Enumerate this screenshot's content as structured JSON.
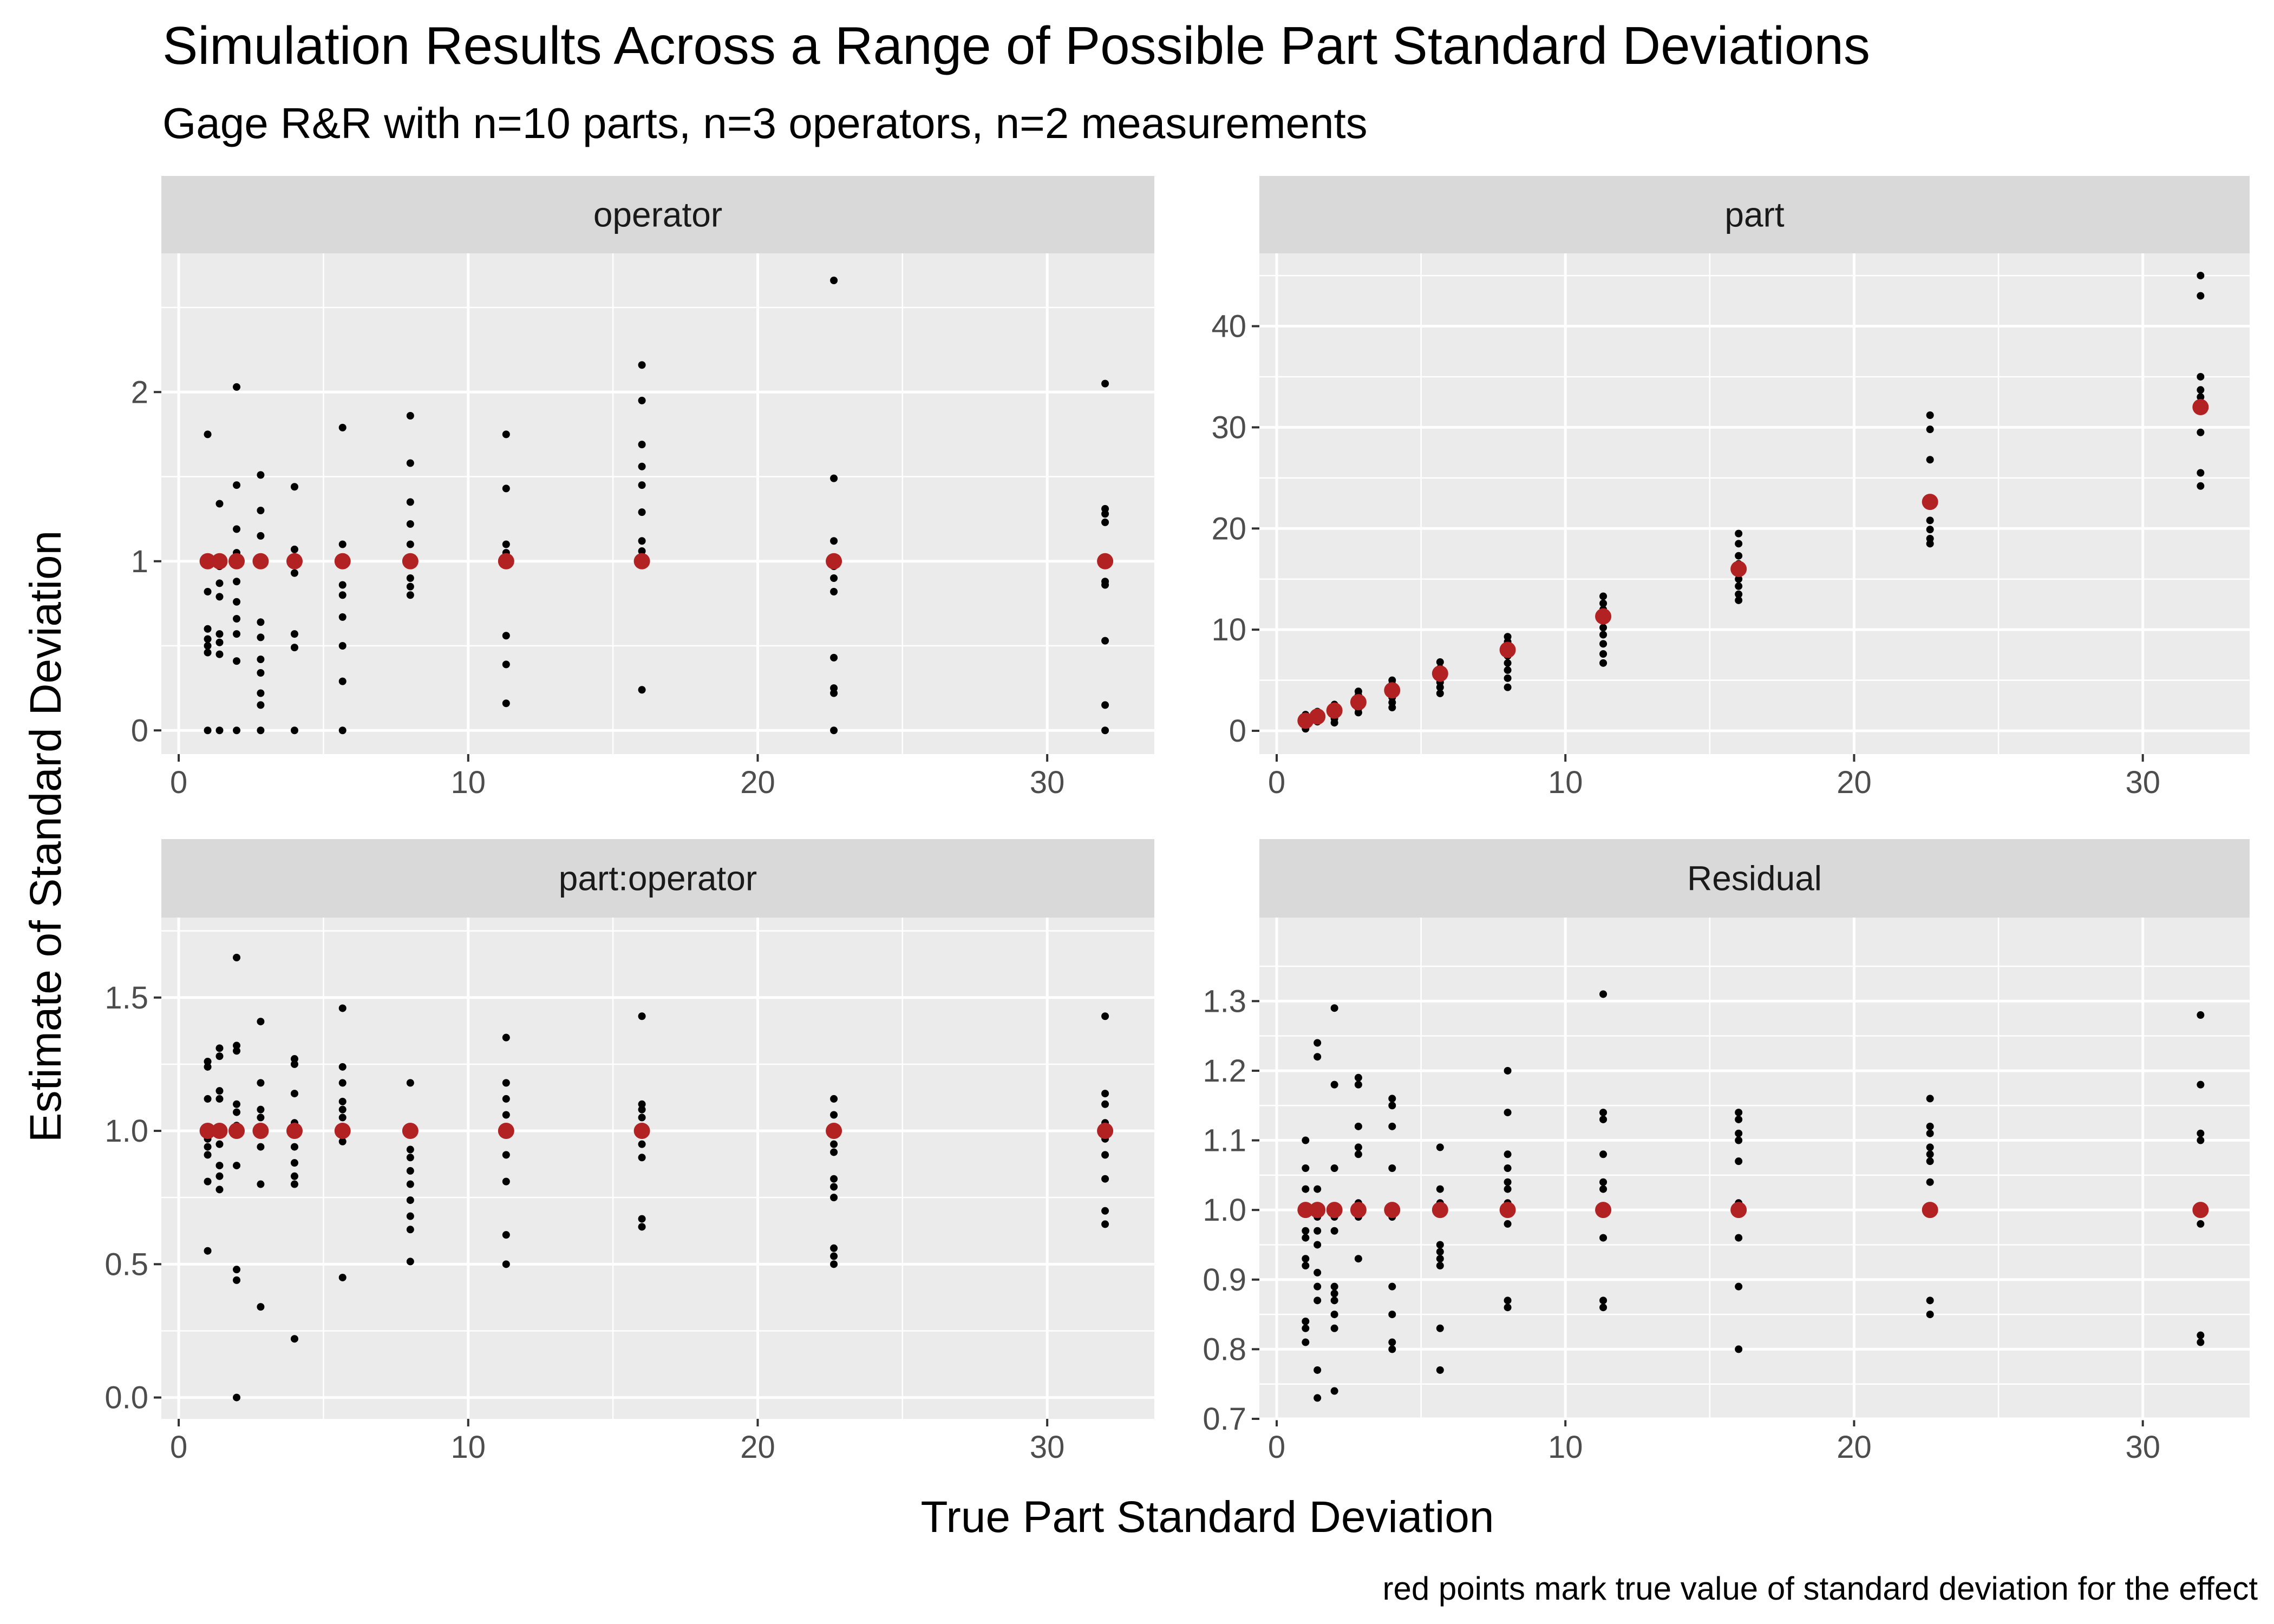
{
  "chart_data": {
    "type": "scatter",
    "title": "Simulation Results Across a Range of Possible Part Standard Deviations",
    "subtitle": "Gage R&R with n=10 parts, n=3 operators, n=2 measurements",
    "xlabel": "True Part Standard Deviation",
    "ylabel": "Estimate of Standard Deviation",
    "caption": "red points mark true value of standard deviation for the effect",
    "grid": true,
    "colors": {
      "estimate_point": "#000000",
      "true_value_point": "#b22222",
      "panel_background": "#ebebeb",
      "strip_background": "#d9d9d9",
      "gridline": "#ffffff"
    },
    "panels": [
      {
        "strip": "operator",
        "xlim": [
          -0.6,
          33.7
        ],
        "ylim": [
          -0.14,
          2.82
        ],
        "x_ticks": [
          0,
          10,
          20,
          30
        ],
        "x_tick_labels": [
          "0",
          "10",
          "20",
          "30"
        ],
        "y_ticks": [
          0,
          1,
          2
        ],
        "y_tick_labels": [
          "0",
          "1",
          "2"
        ],
        "true_points": [
          {
            "x": 1,
            "y": 1
          },
          {
            "x": 1.41,
            "y": 1
          },
          {
            "x": 2,
            "y": 1
          },
          {
            "x": 2.83,
            "y": 1
          },
          {
            "x": 4,
            "y": 1
          },
          {
            "x": 5.66,
            "y": 1
          },
          {
            "x": 8,
            "y": 1
          },
          {
            "x": 11.31,
            "y": 1
          },
          {
            "x": 16,
            "y": 1
          },
          {
            "x": 22.63,
            "y": 1
          },
          {
            "x": 32,
            "y": 1
          }
        ],
        "estimates": [
          {
            "x": 1,
            "y": [
              1.75,
              1.0,
              0.82,
              0.6,
              0.54,
              0.5,
              0.46,
              0.0
            ]
          },
          {
            "x": 1.41,
            "y": [
              1.34,
              0.97,
              0.87,
              0.79,
              0.57,
              0.52,
              0.45,
              0.0
            ]
          },
          {
            "x": 2,
            "y": [
              2.03,
              1.45,
              1.19,
              1.05,
              0.88,
              0.76,
              0.66,
              0.57,
              0.41,
              0.0
            ]
          },
          {
            "x": 2.83,
            "y": [
              1.51,
              1.3,
              1.15,
              0.64,
              0.55,
              0.42,
              0.34,
              0.22,
              0.15,
              0.0
            ]
          },
          {
            "x": 4,
            "y": [
              1.44,
              1.07,
              0.98,
              0.93,
              0.57,
              0.49,
              0.0
            ]
          },
          {
            "x": 5.66,
            "y": [
              1.79,
              1.1,
              0.86,
              0.8,
              0.67,
              0.5,
              0.29,
              0.0
            ]
          },
          {
            "x": 8,
            "y": [
              1.86,
              1.58,
              1.35,
              1.22,
              1.1,
              0.9,
              0.85,
              0.8
            ]
          },
          {
            "x": 11.31,
            "y": [
              1.75,
              1.43,
              1.1,
              1.05,
              0.56,
              0.39,
              0.16
            ]
          },
          {
            "x": 16,
            "y": [
              2.16,
              1.95,
              1.69,
              1.56,
              1.45,
              1.29,
              1.12,
              1.06,
              0.24
            ]
          },
          {
            "x": 22.63,
            "y": [
              2.66,
              1.49,
              1.12,
              0.97,
              0.9,
              0.82,
              0.43,
              0.25,
              0.22,
              0.0
            ]
          },
          {
            "x": 32,
            "y": [
              2.05,
              1.31,
              1.28,
              1.23,
              0.88,
              0.86,
              0.53,
              0.15,
              0.0
            ]
          }
        ]
      },
      {
        "strip": "part",
        "xlim": [
          -0.6,
          33.7
        ],
        "ylim": [
          -2.3,
          47.2
        ],
        "x_ticks": [
          0,
          10,
          20,
          30
        ],
        "x_tick_labels": [
          "0",
          "10",
          "20",
          "30"
        ],
        "y_ticks": [
          0,
          10,
          20,
          30,
          40
        ],
        "y_tick_labels": [
          "0",
          "10",
          "20",
          "30",
          "40"
        ],
        "true_points": [
          {
            "x": 1,
            "y": 1
          },
          {
            "x": 1.41,
            "y": 1.41
          },
          {
            "x": 2,
            "y": 2
          },
          {
            "x": 2.83,
            "y": 2.83
          },
          {
            "x": 4,
            "y": 4
          },
          {
            "x": 5.66,
            "y": 5.66
          },
          {
            "x": 8,
            "y": 8
          },
          {
            "x": 11.31,
            "y": 11.31
          },
          {
            "x": 16,
            "y": 16
          },
          {
            "x": 22.63,
            "y": 22.63
          },
          {
            "x": 32,
            "y": 32
          }
        ],
        "estimates": [
          {
            "x": 1,
            "y": [
              1.6,
              1.3,
              1.1,
              0.9,
              0.7,
              0.5,
              0.2
            ]
          },
          {
            "x": 1.41,
            "y": [
              1.9,
              1.6,
              1.4,
              1.2,
              1.0,
              0.9
            ]
          },
          {
            "x": 2,
            "y": [
              2.6,
              2.3,
              2.1,
              1.8,
              1.5,
              1.2,
              0.8
            ]
          },
          {
            "x": 2.83,
            "y": [
              3.9,
              3.5,
              3.1,
              2.6,
              2.2,
              1.8
            ]
          },
          {
            "x": 4,
            "y": [
              5.0,
              4.6,
              4.2,
              3.8,
              3.3,
              2.8,
              2.3
            ]
          },
          {
            "x": 5.66,
            "y": [
              6.8,
              6.2,
              5.8,
              5.3,
              4.8,
              4.3,
              3.7
            ]
          },
          {
            "x": 8,
            "y": [
              9.3,
              8.8,
              8.2,
              7.4,
              6.7,
              6.0,
              5.2,
              4.3
            ]
          },
          {
            "x": 11.31,
            "y": [
              13.3,
              12.6,
              12.0,
              11.2,
              10.2,
              9.5,
              8.6,
              7.6,
              6.7
            ]
          },
          {
            "x": 16,
            "y": [
              19.5,
              18.5,
              17.3,
              16.5,
              15.8,
              15.0,
              14.3,
              13.5,
              12.9
            ]
          },
          {
            "x": 22.63,
            "y": [
              31.2,
              29.8,
              26.8,
              22.6,
              20.8,
              19.9,
              19.0,
              18.5
            ]
          },
          {
            "x": 32,
            "y": [
              45.0,
              43.0,
              35.0,
              33.7,
              33.0,
              29.5,
              25.5,
              24.2
            ]
          }
        ]
      },
      {
        "strip": "part:operator",
        "xlim": [
          -0.6,
          33.7
        ],
        "ylim": [
          -0.08,
          1.8
        ],
        "x_ticks": [
          0,
          10,
          20,
          30
        ],
        "x_tick_labels": [
          "0",
          "10",
          "20",
          "30"
        ],
        "y_ticks": [
          0,
          0.5,
          1,
          1.5
        ],
        "y_tick_labels": [
          "0.0",
          "0.5",
          "1.0",
          "1.5"
        ],
        "true_points": [
          {
            "x": 1,
            "y": 1
          },
          {
            "x": 1.41,
            "y": 1
          },
          {
            "x": 2,
            "y": 1
          },
          {
            "x": 2.83,
            "y": 1
          },
          {
            "x": 4,
            "y": 1
          },
          {
            "x": 5.66,
            "y": 1
          },
          {
            "x": 8,
            "y": 1
          },
          {
            "x": 11.31,
            "y": 1
          },
          {
            "x": 16,
            "y": 1
          },
          {
            "x": 22.63,
            "y": 1
          },
          {
            "x": 32,
            "y": 1
          }
        ],
        "estimates": [
          {
            "x": 1,
            "y": [
              1.26,
              1.24,
              1.12,
              1.01,
              0.97,
              0.94,
              0.91,
              0.81,
              0.55
            ]
          },
          {
            "x": 1.41,
            "y": [
              1.31,
              1.28,
              1.15,
              1.12,
              1.0,
              0.95,
              0.87,
              0.83,
              0.78
            ]
          },
          {
            "x": 2,
            "y": [
              1.65,
              1.32,
              1.3,
              1.1,
              1.07,
              1.02,
              0.87,
              0.48,
              0.44,
              0.0
            ]
          },
          {
            "x": 2.83,
            "y": [
              1.41,
              1.18,
              1.08,
              1.05,
              0.94,
              0.8,
              0.34
            ]
          },
          {
            "x": 4,
            "y": [
              1.27,
              1.25,
              1.14,
              1.03,
              0.94,
              0.88,
              0.83,
              0.8,
              0.22
            ]
          },
          {
            "x": 5.66,
            "y": [
              1.46,
              1.24,
              1.18,
              1.11,
              1.08,
              1.05,
              0.99,
              0.96,
              0.45
            ]
          },
          {
            "x": 8,
            "y": [
              1.18,
              0.99,
              0.93,
              0.9,
              0.85,
              0.8,
              0.74,
              0.68,
              0.63,
              0.51
            ]
          },
          {
            "x": 11.31,
            "y": [
              1.35,
              1.18,
              1.12,
              1.06,
              0.91,
              0.81,
              0.61,
              0.5
            ]
          },
          {
            "x": 16,
            "y": [
              1.43,
              1.1,
              1.08,
              1.05,
              0.99,
              0.95,
              0.9,
              0.67,
              0.64
            ]
          },
          {
            "x": 22.63,
            "y": [
              1.12,
              1.06,
              0.95,
              0.92,
              0.82,
              0.79,
              0.75,
              0.56,
              0.53,
              0.5
            ]
          },
          {
            "x": 32,
            "y": [
              1.43,
              1.14,
              1.1,
              1.03,
              0.97,
              0.91,
              0.82,
              0.7,
              0.65
            ]
          }
        ]
      },
      {
        "strip": "Residual",
        "xlim": [
          -0.6,
          33.7
        ],
        "ylim": [
          0.7,
          1.42
        ],
        "x_ticks": [
          0,
          10,
          20,
          30
        ],
        "x_tick_labels": [
          "0",
          "10",
          "20",
          "30"
        ],
        "y_ticks": [
          0.7,
          0.8,
          0.9,
          1.0,
          1.1,
          1.2,
          1.3
        ],
        "y_tick_labels": [
          "0.7",
          "0.8",
          "0.9",
          "1.0",
          "1.1",
          "1.2",
          "1.3"
        ],
        "true_points": [
          {
            "x": 1,
            "y": 1
          },
          {
            "x": 1.41,
            "y": 1
          },
          {
            "x": 2,
            "y": 1
          },
          {
            "x": 2.83,
            "y": 1
          },
          {
            "x": 4,
            "y": 1
          },
          {
            "x": 5.66,
            "y": 1
          },
          {
            "x": 8,
            "y": 1
          },
          {
            "x": 11.31,
            "y": 1
          },
          {
            "x": 16,
            "y": 1
          },
          {
            "x": 22.63,
            "y": 1
          },
          {
            "x": 32,
            "y": 1
          }
        ],
        "estimates": [
          {
            "x": 1,
            "y": [
              1.1,
              1.06,
              1.03,
              0.97,
              0.96,
              0.93,
              0.92,
              0.84,
              0.83,
              0.81
            ]
          },
          {
            "x": 1.41,
            "y": [
              1.24,
              1.22,
              1.03,
              0.99,
              0.97,
              0.95,
              0.91,
              0.89,
              0.87,
              0.77,
              0.73
            ]
          },
          {
            "x": 2,
            "y": [
              1.29,
              1.18,
              1.06,
              0.99,
              0.97,
              0.89,
              0.88,
              0.87,
              0.85,
              0.83,
              0.74
            ]
          },
          {
            "x": 2.83,
            "y": [
              1.19,
              1.18,
              1.12,
              1.09,
              1.08,
              1.01,
              0.99,
              0.93
            ]
          },
          {
            "x": 4,
            "y": [
              1.16,
              1.15,
              1.12,
              1.06,
              0.99,
              0.89,
              0.85,
              0.81,
              0.8
            ]
          },
          {
            "x": 5.66,
            "y": [
              1.09,
              1.03,
              1.01,
              0.95,
              0.94,
              0.93,
              0.92,
              0.83,
              0.77
            ]
          },
          {
            "x": 8,
            "y": [
              1.2,
              1.14,
              1.08,
              1.06,
              1.04,
              1.03,
              1.01,
              0.98,
              0.87,
              0.86
            ]
          },
          {
            "x": 11.31,
            "y": [
              1.31,
              1.14,
              1.13,
              1.08,
              1.04,
              1.03,
              0.96,
              0.87,
              0.86
            ]
          },
          {
            "x": 16,
            "y": [
              1.14,
              1.13,
              1.11,
              1.1,
              1.07,
              1.01,
              1.0,
              0.96,
              0.89,
              0.8
            ]
          },
          {
            "x": 22.63,
            "y": [
              1.16,
              1.12,
              1.11,
              1.09,
              1.08,
              1.07,
              1.04,
              0.87,
              0.85
            ]
          },
          {
            "x": 32,
            "y": [
              1.28,
              1.18,
              1.11,
              1.1,
              0.98,
              0.82,
              0.81
            ]
          }
        ]
      }
    ]
  }
}
